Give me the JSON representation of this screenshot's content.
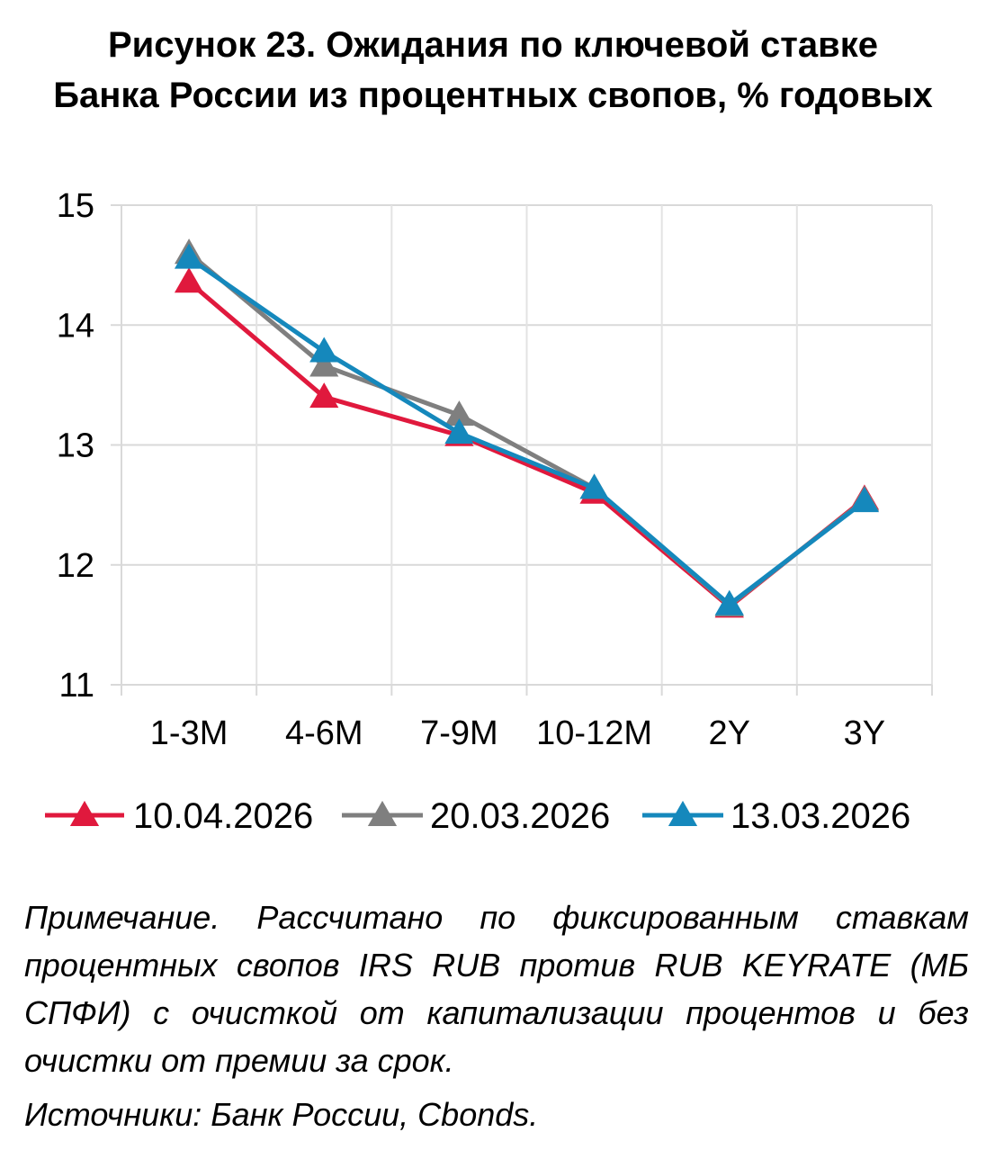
{
  "title_line1": "Рисунок 23. Ожидания по ключевой ставке",
  "title_line2": "Банка России из процентных свопов, % годовых",
  "note": "Примечание. Рассчитано по фиксированным ставкам процентных свопов IRS RUB против RUB KEYRATE (МБ СПФИ) с очисткой от капитализации процентов и без очистки от премии за срок.",
  "sources": "Источники: Банк России, Cbonds.",
  "chart_data": {
    "type": "line",
    "title": "Рисунок 23. Ожидания по ключевой ставке Банка России из процентных свопов, % годовых",
    "categories": [
      "1-3M",
      "4-6M",
      "7-9M",
      "10-12M",
      "2Y",
      "3Y"
    ],
    "yticks": [
      "11",
      "12",
      "13",
      "14",
      "15"
    ],
    "ylim": [
      11,
      15
    ],
    "grid": true,
    "legend": "bottom",
    "marker": "triangle",
    "series": [
      {
        "name": "10.04.2026",
        "color": "#E0193D",
        "values": [
          14.36,
          13.4,
          13.08,
          12.6,
          11.65,
          12.55
        ]
      },
      {
        "name": "20.03.2026",
        "color": "#7F7F7F",
        "values": [
          14.6,
          13.66,
          13.25,
          12.64,
          11.66,
          12.54
        ]
      },
      {
        "name": "13.03.2026",
        "color": "#1588BC",
        "values": [
          14.56,
          13.78,
          13.1,
          12.64,
          11.67,
          12.53
        ]
      }
    ]
  }
}
